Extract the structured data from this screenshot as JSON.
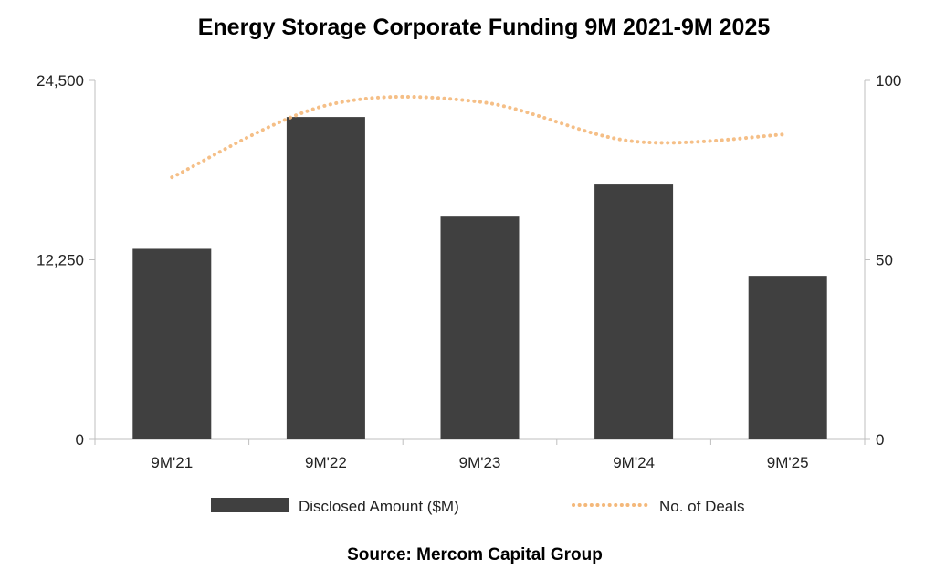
{
  "chart_data": {
    "type": "bar",
    "title": "Energy Storage Corporate Funding 9M 2021-9M 2025",
    "source": "Source: Mercom Capital Group",
    "categories": [
      "9M'21",
      "9M'22",
      "9M'23",
      "9M'24",
      "9M'25"
    ],
    "series": [
      {
        "name": "Disclosed Amount ($M)",
        "type": "bar",
        "axis": "left",
        "color": "#404040",
        "values": [
          13000,
          22000,
          15200,
          17450,
          11150
        ]
      },
      {
        "name": "No. of Deals",
        "type": "line",
        "style": "dotted",
        "smooth": true,
        "axis": "right",
        "color": "#F4B87A",
        "values": [
          73,
          93,
          94,
          83,
          85
        ]
      }
    ],
    "y_left": {
      "range": [
        0,
        24500
      ],
      "ticks": [
        "0",
        "12,250",
        "24,500"
      ]
    },
    "y_right": {
      "range": [
        0,
        100
      ],
      "ticks": [
        "0",
        "50",
        "100"
      ]
    },
    "grid": false,
    "legend_placement": "bottom"
  }
}
